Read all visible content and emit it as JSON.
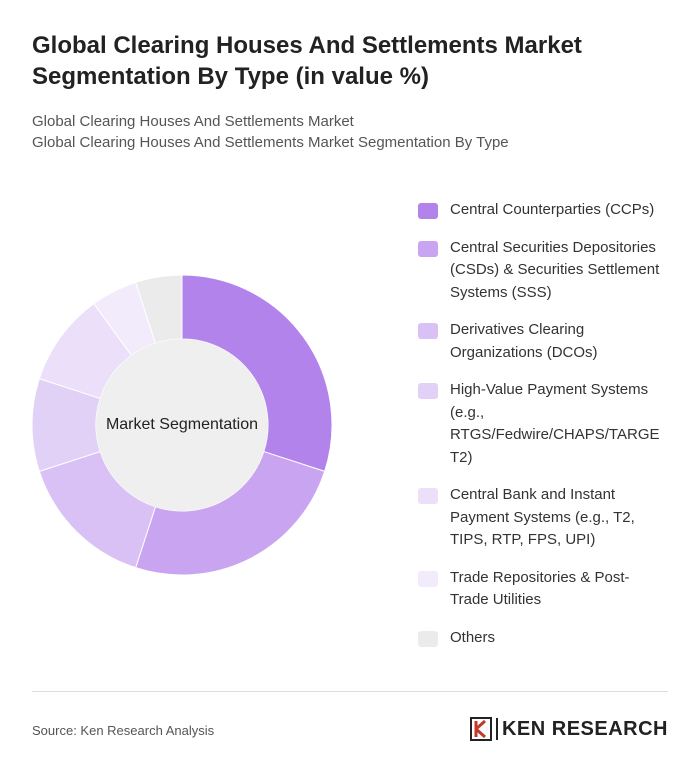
{
  "chart_data": {
    "type": "donut",
    "title": "Global Clearing Houses And Settlements Market Segmentation By Type (in value %)",
    "subtitles": [
      "Global Clearing Houses And Settlements Market",
      "Global Clearing Houses And Settlements Market Segmentation By Type"
    ],
    "center_label": "Market Segmentation",
    "categories": [
      "Central Counterparties (CCPs)",
      "Central Securities Depositories (CSDs) & Securities Settlement Systems (SSS)",
      "Derivatives Clearing Organizations (DCOs)",
      "High-Value Payment Systems (e.g., RTGS/Fedwire/CHAPS/TARGET2)",
      "Central Bank and Instant Payment Systems (e.g., T2, TIPS, RTP, FPS, UPI)",
      "Trade Repositories & Post-Trade Utilities",
      "Others"
    ],
    "values": [
      30,
      25,
      15,
      10,
      10,
      5,
      5
    ],
    "colors": [
      "#b383ec",
      "#c9a4f0",
      "#d9c0f5",
      "#e2d1f7",
      "#ebdff9",
      "#f2ebfb",
      "#ebebeb"
    ]
  },
  "footer": {
    "source": "Source: Ken Research Analysis",
    "brand": "KEN RESEARCH"
  }
}
